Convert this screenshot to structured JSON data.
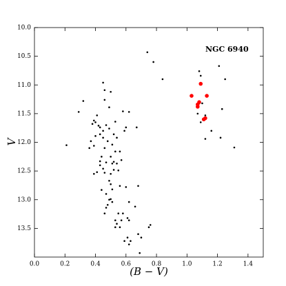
{
  "chart_data": {
    "type": "scatter",
    "annotation": "NGC 6940",
    "x_label": "(B − V)",
    "y_label": "V",
    "xlim": [
      0,
      1.5
    ],
    "ylim": [
      10,
      14
    ],
    "y_inverted": true,
    "xticks": [
      {
        "value": 0,
        "label": "0.0"
      },
      0.2,
      0.4,
      0.6,
      0.8,
      {
        "value": 1,
        "label": "1.0"
      },
      1.2,
      1.4
    ],
    "yticks": [
      {
        "value": 10,
        "label": "10.0"
      },
      10.5,
      {
        "value": 11,
        "label": "11.0"
      },
      11.5,
      {
        "value": 12,
        "label": "12.0"
      },
      12.5,
      {
        "value": 13,
        "label": "13.0"
      },
      13.5
    ],
    "series": [
      {
        "color": "#000000",
        "x": [
          0.74,
          0.78,
          0.84,
          1.21,
          1.25,
          1.08,
          1.09,
          0.32,
          0.29,
          0.21,
          0.45,
          0.46,
          0.5,
          0.46,
          0.49,
          0.58,
          0.62,
          0.67,
          0.6,
          0.59,
          0.53,
          0.41,
          0.39,
          0.38,
          0.4,
          0.42,
          0.43,
          0.45,
          0.47,
          0.49,
          0.43,
          0.45,
          0.4,
          0.37,
          0.36,
          0.39,
          0.46,
          0.48,
          0.52,
          0.54,
          0.51,
          0.53,
          0.5,
          0.44,
          0.43,
          0.45,
          0.41,
          0.39,
          0.46,
          0.5,
          0.52,
          0.55,
          0.57,
          0.54,
          0.52,
          0.47,
          0.43,
          0.56,
          0.51,
          0.49,
          0.5,
          0.51,
          0.44,
          0.47,
          0.49,
          0.48,
          0.47,
          0.46,
          0.5,
          0.51,
          0.56,
          0.6,
          0.68,
          0.62,
          0.66,
          0.53,
          0.54,
          0.53,
          0.57,
          0.56,
          0.59,
          0.61,
          0.62,
          0.63,
          0.62,
          0.61,
          0.55,
          0.69,
          0.76,
          0.75,
          0.68,
          0.7,
          0.58,
          1.23,
          1.07,
          1.09,
          1.12,
          1.16,
          1.22,
          1.12,
          1.31,
          1.1
        ],
        "y": [
          10.43,
          10.6,
          10.9,
          10.67,
          10.9,
          10.76,
          10.84,
          11.28,
          11.47,
          12.05,
          10.96,
          11.09,
          11.12,
          11.26,
          11.39,
          11.46,
          11.47,
          11.74,
          11.74,
          11.8,
          11.64,
          11.53,
          11.62,
          11.68,
          11.65,
          11.71,
          11.74,
          11.8,
          11.7,
          11.76,
          11.86,
          11.92,
          11.89,
          11.98,
          12.1,
          12.06,
          12.1,
          11.98,
          11.86,
          11.92,
          12.04,
          12.16,
          12.25,
          12.25,
          12.4,
          12.46,
          12.52,
          12.55,
          12.53,
          12.55,
          12.48,
          12.49,
          12.31,
          12.37,
          12.34,
          12.35,
          12.33,
          12.16,
          12.37,
          12.67,
          12.73,
          12.82,
          12.83,
          12.9,
          13,
          13.09,
          13.14,
          13.24,
          12.99,
          13.04,
          12.76,
          12.78,
          12.76,
          13.04,
          13.12,
          13.36,
          13.42,
          13.48,
          13.36,
          13.48,
          13.72,
          13.66,
          13.78,
          13.72,
          13.36,
          13.32,
          13.24,
          13.93,
          13.44,
          13.48,
          13.6,
          13.66,
          13.24,
          11.42,
          11.5,
          11.65,
          11.53,
          11.8,
          11.92,
          11.94,
          12.09,
          11.32
        ]
      },
      {
        "color": "#ff0000",
        "x": [
          1.03,
          1.09,
          1.13,
          1.08,
          1.07,
          1.07,
          1.12,
          1.11
        ],
        "y": [
          11.19,
          10.98,
          11.19,
          11.3,
          11.38,
          11.34,
          11.58,
          11.6
        ]
      }
    ]
  }
}
